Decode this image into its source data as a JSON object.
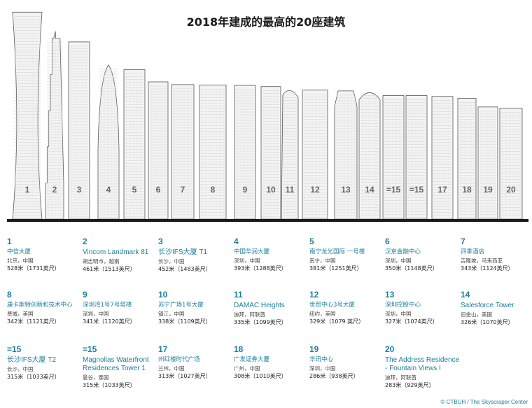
{
  "title": "2018年建成的最高的20座建筑",
  "credit": "© CTBUH / The Skyscraper Center",
  "chart_data": {
    "type": "bar",
    "title": "2018年建成的最高的20座建筑",
    "categories": [
      "1",
      "2",
      "3",
      "4",
      "5",
      "6",
      "7",
      "8",
      "9",
      "10",
      "11",
      "12",
      "13",
      "14",
      "=15",
      "=15",
      "17",
      "18",
      "19",
      "20"
    ],
    "values": [
      528,
      461,
      452,
      393,
      381,
      350,
      343,
      342,
      341,
      338,
      335,
      329,
      327,
      326,
      315,
      315,
      313,
      308,
      286,
      283
    ],
    "unit": "米",
    "entries": [
      {
        "rank": "1",
        "name": "中信大厦",
        "location": "北京，中国",
        "height": "528米（1731英尺）"
      },
      {
        "rank": "2",
        "name": "Vincom Landmark 81",
        "location": "胡志明市，越南",
        "height": "461米（1513英尺）"
      },
      {
        "rank": "3",
        "name": "长沙IFS大厦 T1",
        "location": "长沙，中国",
        "height": "452米（1483英尺）"
      },
      {
        "rank": "4",
        "name": "中国华润大厦",
        "location": "深圳，中国",
        "height": "393米（1288英尺）"
      },
      {
        "rank": "5",
        "name": "南宁龙光国际 一号楼",
        "location": "南宁，中国",
        "height": "381米（1251英尺）"
      },
      {
        "rank": "6",
        "name": "汉京金融中心",
        "location": "深圳，中国",
        "height": "350米（1148英尺）"
      },
      {
        "rank": "7",
        "name": "四季酒店",
        "location": "吉隆坡，马来西亚",
        "height": "343米（1124英尺）"
      },
      {
        "rank": "8",
        "name": "康卡斯特创新和技术中心",
        "location": "费城，美国",
        "height": "342米（1121英尺）"
      },
      {
        "rank": "9",
        "name": "深圳湾1号7号塔楼",
        "location": "深圳，中国",
        "height": "341米（1120英尺）"
      },
      {
        "rank": "10",
        "name": "苏宁广场1号大厦",
        "location": "镇江，中国",
        "height": "338米（1109英尺）"
      },
      {
        "rank": "11",
        "name": "DAMAC Heights",
        "location": "迪拜，阿联酋",
        "height": "335米（1099英尺）"
      },
      {
        "rank": "12",
        "name": "世贸中心3号大厦",
        "location": "纽约，美国",
        "height": "329米（1079 英尺）"
      },
      {
        "rank": "13",
        "name": "深圳控股中心",
        "location": "深圳，中国",
        "height": "327米（1074英尺）"
      },
      {
        "rank": "14",
        "name": "Salesforce Tower",
        "location": "旧金山，美国",
        "height": "326米（1070英尺）"
      },
      {
        "rank": "=15",
        "name": "长沙IFS大厦 T2",
        "location": "长沙，中国",
        "height": "315米（1033英尺）"
      },
      {
        "rank": "=15",
        "name": "Magnolias Waterfront Residences Tower 1",
        "location": "曼谷，泰国",
        "height": "315米（1033英尺）"
      },
      {
        "rank": "17",
        "name": "州红楼时代广场",
        "location": "兰州，中国",
        "height": "313米（1027英尺）"
      },
      {
        "rank": "18",
        "name": "广发证券大厦",
        "location": "广州，中国",
        "height": "308米（1010英尺）"
      },
      {
        "rank": "19",
        "name": "华讯中心",
        "location": "深圳，中国",
        "height": "286米（938英尺）"
      },
      {
        "rank": "20",
        "name": "The Address Residence - Fountain Views I",
        "location": "迪拜，阿联酋",
        "height": "283米（929英尺）"
      }
    ],
    "colors": {
      "accent": "#1b7f9c",
      "ground": "#1a1a1a",
      "tower_fill": "#f4f4f4",
      "tower_line": "#555555"
    }
  }
}
